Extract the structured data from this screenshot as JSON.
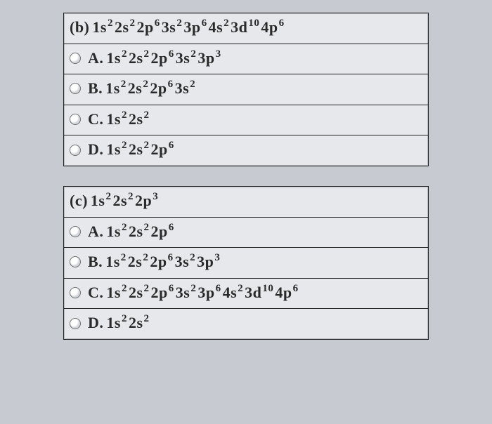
{
  "box_bg": "#e6e8ec",
  "page_bg": "#c7cbd1",
  "border_color": "#222222",
  "font_family": "Times New Roman",
  "font_size": 22,
  "sup_size": 15,
  "questions": [
    {
      "label": "(b)",
      "prompt_terms": [
        {
          "sub": "1s",
          "sup": "2"
        },
        {
          "sub": "2s",
          "sup": "2"
        },
        {
          "sub": "2p",
          "sup": "6"
        },
        {
          "sub": "3s",
          "sup": "2"
        },
        {
          "sub": "3p",
          "sup": "6"
        },
        {
          "sub": "4s",
          "sup": "2"
        },
        {
          "sub": "3d",
          "sup": "10"
        },
        {
          "sub": "4p",
          "sup": "6"
        }
      ],
      "options": [
        {
          "letter": "A.",
          "terms": [
            {
              "sub": "1s",
              "sup": "2"
            },
            {
              "sub": "2s",
              "sup": "2"
            },
            {
              "sub": "2p",
              "sup": "6"
            },
            {
              "sub": "3s",
              "sup": "2"
            },
            {
              "sub": "3p",
              "sup": "3"
            }
          ]
        },
        {
          "letter": "B.",
          "terms": [
            {
              "sub": "1s",
              "sup": "2"
            },
            {
              "sub": "2s",
              "sup": "2"
            },
            {
              "sub": "2p",
              "sup": "6"
            },
            {
              "sub": "3s",
              "sup": "2"
            }
          ]
        },
        {
          "letter": "C.",
          "terms": [
            {
              "sub": "1s",
              "sup": "2"
            },
            {
              "sub": "2s",
              "sup": "2"
            }
          ]
        },
        {
          "letter": "D.",
          "terms": [
            {
              "sub": "1s",
              "sup": "2"
            },
            {
              "sub": "2s",
              "sup": "2"
            },
            {
              "sub": "2p",
              "sup": "6"
            }
          ]
        }
      ]
    },
    {
      "label": "(c)",
      "prompt_terms": [
        {
          "sub": "1s",
          "sup": "2"
        },
        {
          "sub": "2s",
          "sup": "2"
        },
        {
          "sub": "2p",
          "sup": "3"
        }
      ],
      "options": [
        {
          "letter": "A.",
          "terms": [
            {
              "sub": "1s",
              "sup": "2"
            },
            {
              "sub": "2s",
              "sup": "2"
            },
            {
              "sub": "2p",
              "sup": "6"
            }
          ]
        },
        {
          "letter": "B.",
          "terms": [
            {
              "sub": "1s",
              "sup": "2"
            },
            {
              "sub": "2s",
              "sup": "2"
            },
            {
              "sub": "2p",
              "sup": "6"
            },
            {
              "sub": "3s",
              "sup": "2"
            },
            {
              "sub": "3p",
              "sup": "3"
            }
          ]
        },
        {
          "letter": "C.",
          "terms": [
            {
              "sub": "1s",
              "sup": "2"
            },
            {
              "sub": "2s",
              "sup": "2"
            },
            {
              "sub": "2p",
              "sup": "6"
            },
            {
              "sub": "3s",
              "sup": "2"
            },
            {
              "sub": "3p",
              "sup": "6"
            },
            {
              "sub": "4s",
              "sup": "2"
            },
            {
              "sub": "3d",
              "sup": "10"
            },
            {
              "sub": "4p",
              "sup": "6"
            }
          ]
        },
        {
          "letter": "D.",
          "terms": [
            {
              "sub": "1s",
              "sup": "2"
            },
            {
              "sub": "2s",
              "sup": "2"
            }
          ]
        }
      ]
    }
  ]
}
